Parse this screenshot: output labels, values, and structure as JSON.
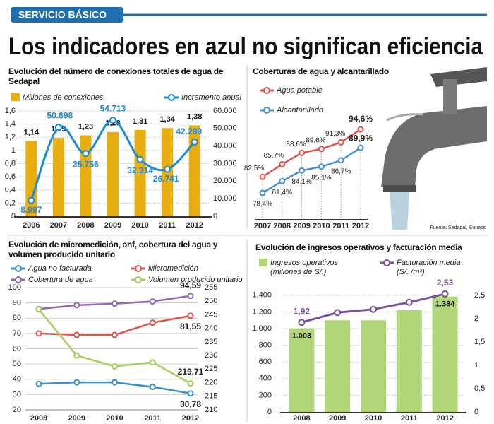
{
  "header": {
    "section": "SERVICIO BÁSICO",
    "title": "Los indicadores en azul no significan eficiencia",
    "source": "Fuente: Sedapal, Sunass"
  },
  "chart_data": [
    {
      "type": "combo",
      "title": "Evolución del número de conexiones totales de agua de Sedapal",
      "categories": [
        "2006",
        "2007",
        "2008",
        "2009",
        "2010",
        "2011",
        "2012"
      ],
      "series": [
        {
          "name": "Millones de conexiones",
          "type": "bar",
          "color": "#e9ae12",
          "values": [
            1.14,
            1.19,
            1.23,
            1.28,
            1.31,
            1.34,
            1.38
          ],
          "value_labels": [
            "1,14",
            "1,19",
            "1,23",
            "1,28",
            "1,31",
            "1,34",
            "1,38"
          ]
        },
        {
          "name": "Incremento anual",
          "type": "line",
          "axis": "y2",
          "smooth": true,
          "color": "#1b8bd3",
          "values": [
            8997,
            50698,
            35756,
            54713,
            32314,
            26741,
            42289
          ],
          "value_labels": [
            "8.997",
            "50.698",
            "35.756",
            "54.713",
            "32.314",
            "26.741",
            "42.289"
          ]
        }
      ],
      "ylim": [
        0,
        1.6
      ],
      "yticks": [
        0,
        {
          "value": 0.2,
          "label": "0,2"
        },
        {
          "value": 0.4,
          "label": "0,4"
        },
        {
          "value": 0.6,
          "label": "0,6"
        },
        {
          "value": 0.8,
          "label": "0,8"
        },
        1,
        {
          "value": 1.2,
          "label": "1,2"
        },
        {
          "value": 1.4,
          "label": "1,4"
        },
        {
          "value": 1.6,
          "label": "1,6"
        }
      ],
      "y2lim": [
        0,
        60000
      ],
      "y2ticks": [
        0,
        {
          "value": 10000,
          "label": "10.000"
        },
        {
          "value": 20000,
          "label": "20.000"
        },
        {
          "value": 30000,
          "label": "30.000"
        },
        {
          "value": 40000,
          "label": "40.000"
        },
        {
          "value": 50000,
          "label": "50.000"
        },
        {
          "value": 60000,
          "label": "60.000"
        }
      ],
      "grid": true
    },
    {
      "type": "line",
      "title": "Coberturas de agua y alcantarillado",
      "categories": [
        "2007",
        "2008",
        "2009",
        "2010",
        "2011",
        "2012"
      ],
      "series": [
        {
          "name": "Agua potable",
          "color": "#e0524c",
          "values": [
            82.5,
            85.7,
            88.6,
            89.6,
            91.3,
            94.6
          ],
          "value_labels": [
            "82,5%",
            "85,7%",
            "88,6%",
            "89,6%",
            "91,3%",
            "94,6%"
          ]
        },
        {
          "name": "Alcantarillado",
          "color": "#4a90d0",
          "values": [
            78.4,
            81.4,
            84.1,
            85.1,
            86.7,
            89.9
          ],
          "value_labels": [
            "78,4%",
            "81,4%",
            "84,1%",
            "85,1%",
            "86,7%",
            "89,9%"
          ]
        }
      ]
    },
    {
      "type": "line",
      "title": "Evolución de micromedición, anf, cobertura del agua y volumen producido unitario",
      "categories": [
        "2008",
        "2009",
        "2010",
        "2011",
        "2012"
      ],
      "series": [
        {
          "name": "Agua no facturada",
          "color": "#3a8fd0",
          "values": [
            37,
            38,
            38,
            35,
            30.78
          ],
          "value_labels": [
            null,
            null,
            null,
            null,
            "30,78"
          ]
        },
        {
          "name": "Micromedición",
          "color": "#e0524c",
          "values": [
            70,
            69,
            69,
            77,
            81.55
          ],
          "value_labels": [
            null,
            null,
            null,
            null,
            "81,55"
          ]
        },
        {
          "name": "Cobertura de agua",
          "color": "#9466b4",
          "values": [
            86,
            88.5,
            89.5,
            91,
            94.59
          ],
          "value_labels": [
            null,
            null,
            null,
            null,
            "94,59"
          ]
        },
        {
          "name": "Volumen producido unitario",
          "color": "#a7cf5f",
          "axis": "y2",
          "values": [
            247,
            230,
            226,
            227.5,
            219.71
          ],
          "value_labels": [
            null,
            null,
            null,
            null,
            "219,71"
          ]
        }
      ],
      "ylim": [
        20,
        100
      ],
      "yticks": [
        20,
        30,
        40,
        50,
        60,
        70,
        80,
        90,
        100
      ],
      "y2lim": [
        210,
        255
      ],
      "y2ticks": [
        210,
        215,
        220,
        225,
        230,
        235,
        240,
        245,
        250,
        255
      ],
      "grid": true
    },
    {
      "type": "combo",
      "title": "Evolución de ingresos operativos y facturación media",
      "categories": [
        "2008",
        "2009",
        "2010",
        "2011",
        "2012"
      ],
      "series": [
        {
          "name": "Ingresos operativos",
          "unit": "(millones de S/.)",
          "type": "bar",
          "color": "#b2d67a",
          "values": [
            1003,
            1100,
            1100,
            1220,
            1384
          ],
          "value_labels": [
            "1.003",
            null,
            null,
            null,
            "1.384"
          ]
        },
        {
          "name": "Facturación media",
          "unit": "(S/. /m³)",
          "type": "line",
          "axis": "y2",
          "color": "#7d4f9e",
          "values": [
            1.92,
            2.13,
            2.2,
            2.35,
            2.53
          ],
          "value_labels": [
            "1,92",
            null,
            null,
            null,
            "2,53"
          ]
        }
      ],
      "ylim": [
        0,
        1500
      ],
      "yticks": [
        0,
        200,
        400,
        600,
        800,
        {
          "value": 1000,
          "label": "1.000"
        },
        {
          "value": 1200,
          "label": "1.200"
        },
        {
          "value": 1400,
          "label": "1.400"
        }
      ],
      "y2lim": [
        0,
        2.68
      ],
      "y2ticks": [
        0,
        {
          "value": 0.5,
          "label": "0,5"
        },
        1,
        {
          "value": 1.5,
          "label": "1,5"
        },
        2,
        {
          "value": 2.5,
          "label": "2,5"
        }
      ],
      "grid": true
    }
  ]
}
